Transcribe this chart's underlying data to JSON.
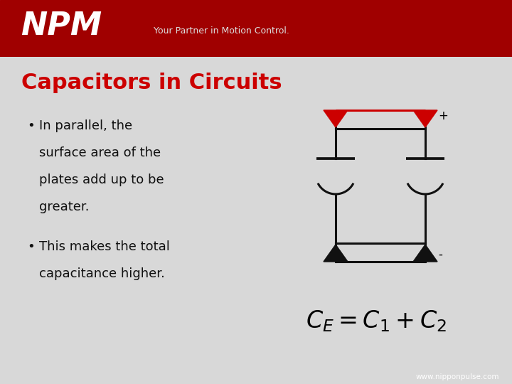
{
  "title": "Capacitors in Circuits",
  "title_color": "#cc0000",
  "title_fontsize": 22,
  "header_bg_top": "#a00000",
  "header_bg_bot": "#cc0000",
  "header_text": "NPM",
  "header_sub": "Your Partner in Motion Control.",
  "bg_color": "#d8d8d8",
  "bullet1_line1": "In parallel, the",
  "bullet1_line2": "surface area of the",
  "bullet1_line3": "plates add up to be",
  "bullet1_line4": "greater.",
  "bullet2_line1": "This makes the total",
  "bullet2_line2": "capacitance higher.",
  "formula": "$C_E = C_1 + C_2$",
  "formula_fontsize": 24,
  "footer_text": "www.nipponpulse.com",
  "footer_bg": "#7a0000",
  "circuit_color_red": "#cc0000",
  "circuit_color_black": "#111111",
  "plus_text": "+",
  "minus_text": "-",
  "bullet_fontsize": 13,
  "bullet_color": "#111111"
}
